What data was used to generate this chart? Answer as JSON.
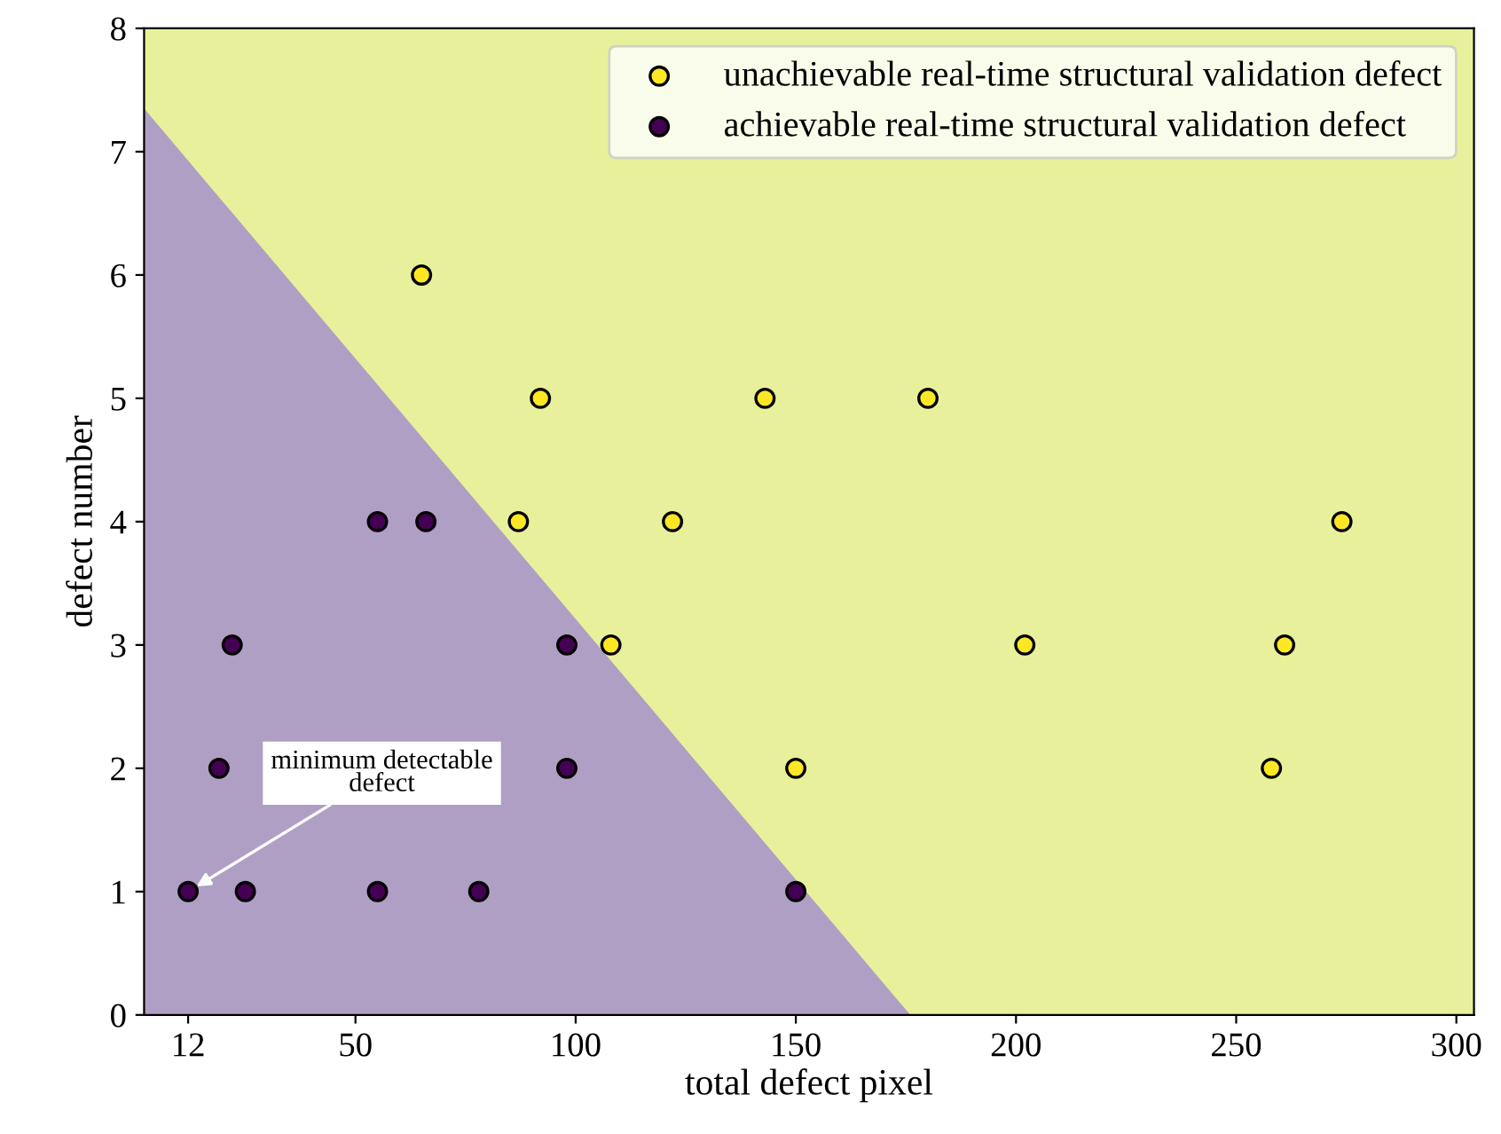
{
  "chart_data": {
    "type": "scatter",
    "xlabel": "total defect pixel",
    "ylabel": "defect number",
    "xlim": [
      2,
      304
    ],
    "ylim": [
      0,
      8
    ],
    "xticks": [
      12,
      50,
      100,
      150,
      200,
      250,
      300
    ],
    "yticks": [
      0,
      1,
      2,
      3,
      4,
      5,
      6,
      7,
      8
    ],
    "grid": false,
    "legend": "top right",
    "bands": [
      {
        "axis": "x",
        "from": 2,
        "to": 304,
        "color": "#e8f09c"
      }
    ],
    "series": [
      {
        "type": "area",
        "color": "#b09fc4",
        "x": [
          2,
          176
        ],
        "values": [
          7.35,
          0
        ]
      },
      {
        "name": "unachievable real-time structural validation defect",
        "color": "#fde725",
        "marker": "circle",
        "x": [
          65,
          92,
          143,
          180,
          87,
          122,
          274,
          108,
          202,
          261,
          150,
          258
        ],
        "values": [
          6,
          5,
          5,
          5,
          4,
          4,
          4,
          3,
          3,
          3,
          2,
          2
        ]
      },
      {
        "name": "achievable real-time structural validation defect",
        "color": "#440154",
        "marker": "circle",
        "x": [
          55,
          66,
          22,
          98,
          19,
          98,
          12,
          25,
          55,
          78,
          150
        ],
        "values": [
          4,
          4,
          3,
          3,
          2,
          2,
          1,
          1,
          1,
          1,
          1
        ]
      }
    ],
    "annotations": [
      {
        "text": "minimum detectable\ndefect",
        "x": 12,
        "y": 1
      }
    ]
  }
}
